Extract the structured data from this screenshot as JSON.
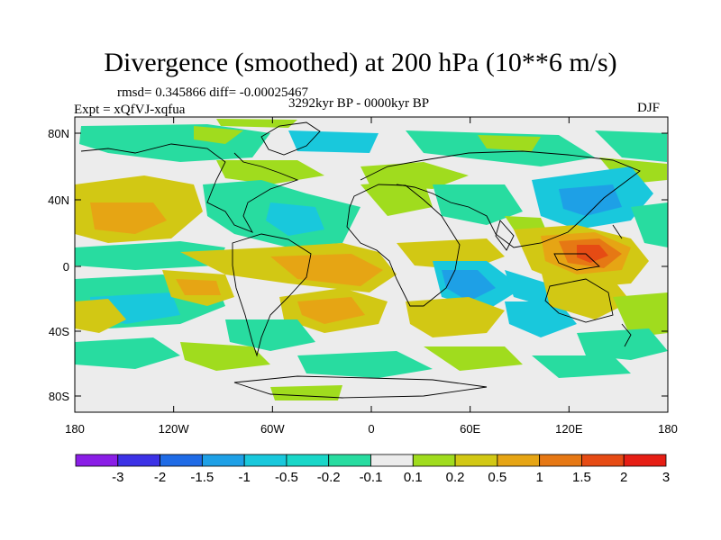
{
  "title": "Divergence (smoothed) at 200 hPa (10**6 m/s)",
  "stats": "rmsd= 0.345866 diff= -0.00025467",
  "period": "3292kyr BP - 0000kyr BP",
  "experiment": "Expt = xQfVJ-xqfua",
  "season": "DJF",
  "lat_ticks": [
    "80N",
    "40N",
    "0",
    "40S",
    "80S"
  ],
  "lon_ticks": [
    "180",
    "120W",
    "60W",
    "0",
    "60E",
    "120E",
    "180"
  ],
  "colorbar": {
    "labels": [
      "-3",
      "-2",
      "-1.5",
      "-1",
      "-0.5",
      "-0.2",
      "-0.1",
      "0.1",
      "0.2",
      "0.5",
      "1",
      "1.5",
      "2",
      "3"
    ],
    "colors": [
      "#8a1ee6",
      "#3c32e6",
      "#1f6be6",
      "#1ea0e6",
      "#19c8dc",
      "#19d7c8",
      "#28dca0",
      "#ececec",
      "#a0dc1e",
      "#d2c814",
      "#e6a514",
      "#e67814",
      "#e64b14",
      "#e61e14"
    ]
  },
  "map_colors": {
    "background": "#ececec",
    "pos_weak": "#a0dc1e",
    "pos_mod": "#d2c814",
    "pos_strong": "#e6a514",
    "pos_vstrong": "#e67814",
    "pos_max": "#e64b14",
    "neg_weak": "#28dca0",
    "neg_mod": "#19c8dc",
    "neg_strong": "#1ea0e6",
    "coast": "#000000"
  }
}
